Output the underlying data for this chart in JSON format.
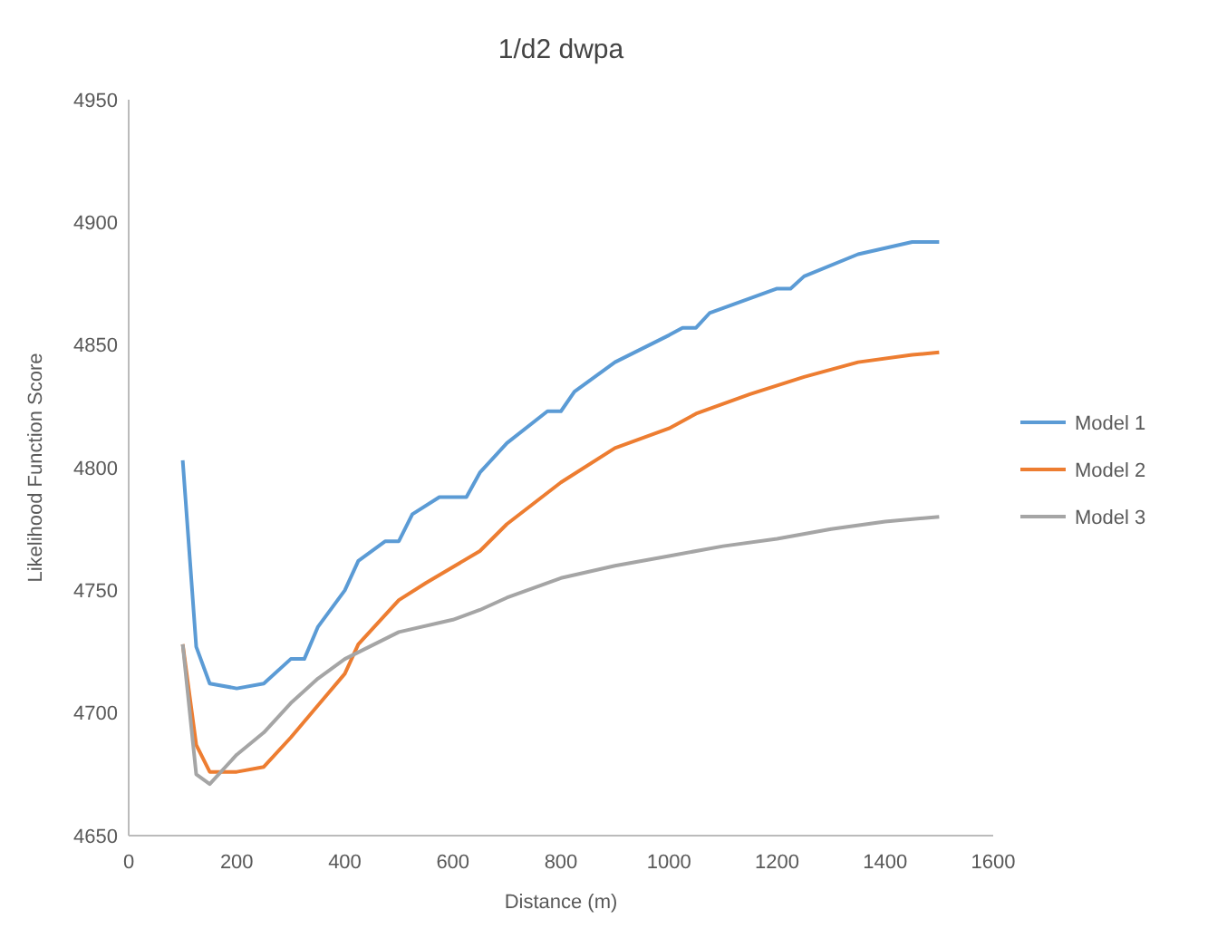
{
  "chart_data": {
    "type": "line",
    "title": "1/d2 dwpa",
    "xlabel": "Distance (m)",
    "ylabel": "Likelihood Function Score",
    "xlim": [
      0,
      1600
    ],
    "xticks": [
      0,
      200,
      400,
      600,
      800,
      1000,
      1200,
      1400,
      1600
    ],
    "ylim": [
      4650,
      4950
    ],
    "yticks": [
      4650,
      4700,
      4750,
      4800,
      4850,
      4900,
      4950
    ],
    "grid": false,
    "legend": "right",
    "marker": "none",
    "line_style": "solid",
    "series": [
      {
        "name": "Model 1",
        "color": "#5b9bd5",
        "x": [
          100,
          125,
          150,
          200,
          250,
          300,
          325,
          350,
          400,
          425,
          475,
          500,
          525,
          575,
          625,
          650,
          700,
          775,
          800,
          825,
          900,
          1000,
          1025,
          1050,
          1075,
          1200,
          1225,
          1250,
          1350,
          1450,
          1500
        ],
        "values": [
          4803,
          4727,
          4712,
          4710,
          4712,
          4722,
          4722,
          4735,
          4750,
          4762,
          4770,
          4770,
          4781,
          4788,
          4788,
          4798,
          4810,
          4823,
          4823,
          4831,
          4843,
          4854,
          4857,
          4857,
          4863,
          4873,
          4873,
          4878,
          4887,
          4892,
          4892
        ]
      },
      {
        "name": "Model 2",
        "color": "#ed7d31",
        "x": [
          100,
          125,
          150,
          200,
          250,
          300,
          350,
          400,
          425,
          475,
          500,
          550,
          650,
          700,
          800,
          900,
          1000,
          1050,
          1150,
          1250,
          1350,
          1450,
          1500
        ],
        "values": [
          4728,
          4687,
          4676,
          4676,
          4678,
          4690,
          4703,
          4716,
          4728,
          4740,
          4746,
          4753,
          4766,
          4777,
          4794,
          4808,
          4816,
          4822,
          4830,
          4837,
          4843,
          4846,
          4847
        ]
      },
      {
        "name": "Model 3",
        "color": "#a5a5a5",
        "x": [
          100,
          125,
          150,
          200,
          250,
          300,
          350,
          400,
          500,
          600,
          650,
          700,
          800,
          900,
          1000,
          1100,
          1200,
          1300,
          1400,
          1500
        ],
        "values": [
          4728,
          4675,
          4671,
          4683,
          4692,
          4704,
          4714,
          4722,
          4733,
          4738,
          4742,
          4747,
          4755,
          4760,
          4764,
          4768,
          4771,
          4775,
          4778,
          4780
        ]
      }
    ]
  }
}
